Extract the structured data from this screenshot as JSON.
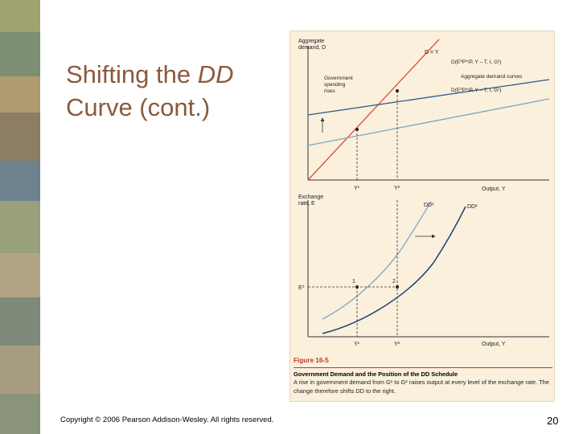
{
  "slide": {
    "title_line1": "Shifting the ",
    "title_dd": "DD",
    "title_line2": "Curve (cont.)",
    "copyright": "Copyright © 2006 Pearson Addison-Wesley. All rights reserved.",
    "page_number": "20"
  },
  "figure": {
    "top_panel": {
      "y_axis_label_1": "Aggregate",
      "y_axis_label_2": "demand, D",
      "x_axis_label": "Output, Y",
      "line_45_label": "D = Y",
      "curve_upper_label": "D(E⁰P*/P, Y – T, I, G²)",
      "curve_lower_label": "D(E⁰P*/P, Y – T, I, G¹)",
      "curves_label": "Aggregate demand curves",
      "gov_label_1": "Government",
      "gov_label_2": "spending",
      "gov_label_3": "rises",
      "y1_tick": "Y¹",
      "y2_tick": "Y²"
    },
    "bottom_panel": {
      "y_axis_label_1": "Exchange",
      "y_axis_label_2": "rate, E",
      "x_axis_label": "Output, Y",
      "e0_label": "E⁰",
      "dd1_label": "DD¹",
      "dd2_label": "DD²",
      "point1_label": "1",
      "point2_label": "2",
      "y1_tick": "Y¹",
      "y2_tick": "Y²"
    },
    "colors": {
      "line_45": "#e04b3a",
      "ad_upper": "#2e5a8c",
      "ad_lower": "#7fa3c6",
      "dd1": "#7fa3c6",
      "dd2": "#1f3f78",
      "axis": "#333333"
    },
    "caption": {
      "label": "Figure 16-5",
      "title": "Government Demand and the Position of the DD Schedule",
      "text": "A rise in government demand from G¹ to G² raises output at every level of the exchange rate. The change therefore shifts DD to the right."
    }
  }
}
